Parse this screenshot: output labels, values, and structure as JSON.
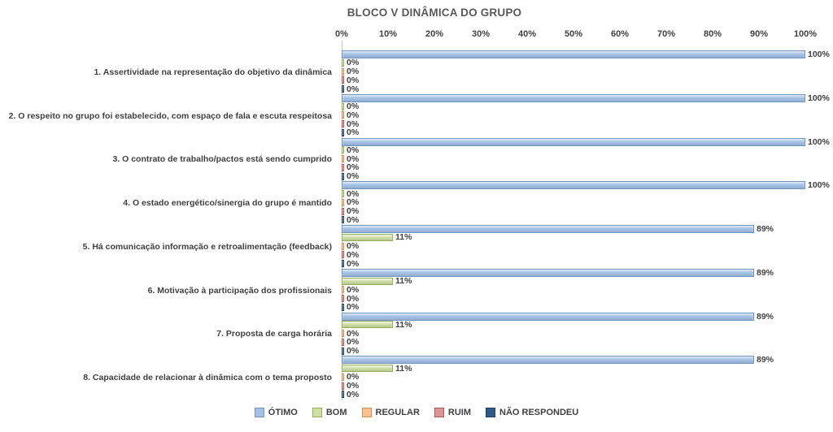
{
  "chart_data": {
    "type": "bar",
    "orientation": "horizontal",
    "title": "BLOCO V DINÂMICA DO GRUPO",
    "categories": [
      "1. Assertividade na representação do objetivo da dinâmica",
      "2. O respeito no grupo foi estabelecido, com espaço de fala e escuta respeitosa",
      "3. O contrato de trabalho/pactos está sendo cumprido",
      "4. O estado energético/sinergia do grupo é mantido",
      "5. Há comunicação informação e retroalimentação (feedback)",
      "6. Motivação à participação dos profissionais",
      "7. Proposta de carga horária",
      "8. Capacidade de relacionar à dinâmica com o tema proposto"
    ],
    "series": [
      {
        "name": "ÓTIMO",
        "values": [
          100,
          100,
          100,
          100,
          89,
          89,
          89,
          89
        ],
        "fill": "#A3C1E5",
        "border": "#7295BF"
      },
      {
        "name": "BOM",
        "values": [
          0,
          0,
          0,
          0,
          11,
          11,
          11,
          11
        ],
        "fill": "#CFDFA6",
        "border": "#94AF58"
      },
      {
        "name": "REGULAR",
        "values": [
          0,
          0,
          0,
          0,
          0,
          0,
          0,
          0
        ],
        "fill": "#FAC090",
        "border": "#CE9257"
      },
      {
        "name": "RUIM",
        "values": [
          0,
          0,
          0,
          0,
          0,
          0,
          0,
          0
        ],
        "fill": "#D99694",
        "border": "#B45755"
      },
      {
        "name": "NÃO RESPONDEU",
        "values": [
          0,
          0,
          0,
          0,
          0,
          0,
          0,
          0
        ],
        "fill": "#2E5A88",
        "border": "#1F3E62"
      }
    ],
    "xticks": [
      "0%",
      "10%",
      "20%",
      "30%",
      "40%",
      "50%",
      "60%",
      "70%",
      "80%",
      "90%",
      "100%"
    ],
    "xlim": [
      0,
      100
    ],
    "data_labels": true,
    "label_suffix": "%",
    "legend_position": "bottom",
    "grid": false,
    "axis_line_color": "#BFBFBF",
    "text_color": "#404040",
    "title_color": "#595959"
  }
}
